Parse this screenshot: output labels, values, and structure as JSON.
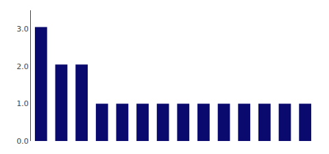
{
  "chart_data": {
    "type": "bar",
    "categories": [
      null,
      null,
      null,
      null,
      null,
      null,
      null,
      null,
      null,
      null,
      null,
      null,
      null,
      null
    ],
    "values": [
      3.05,
      2.05,
      2.05,
      1.0,
      1.0,
      1.0,
      1.0,
      1.0,
      1.0,
      1.0,
      1.0,
      1.0,
      1.0,
      1.0
    ],
    "color": "#0a0a6e",
    "ylim": [
      0,
      3.5
    ],
    "yticks": [
      {
        "value": 0.0,
        "label": "0.0"
      },
      {
        "value": 1.0,
        "label": "1.0"
      },
      {
        "value": 2.0,
        "label": "2.0"
      },
      {
        "value": 3.0,
        "label": "3.0"
      }
    ],
    "grid": false,
    "tick_labels": "y"
  }
}
